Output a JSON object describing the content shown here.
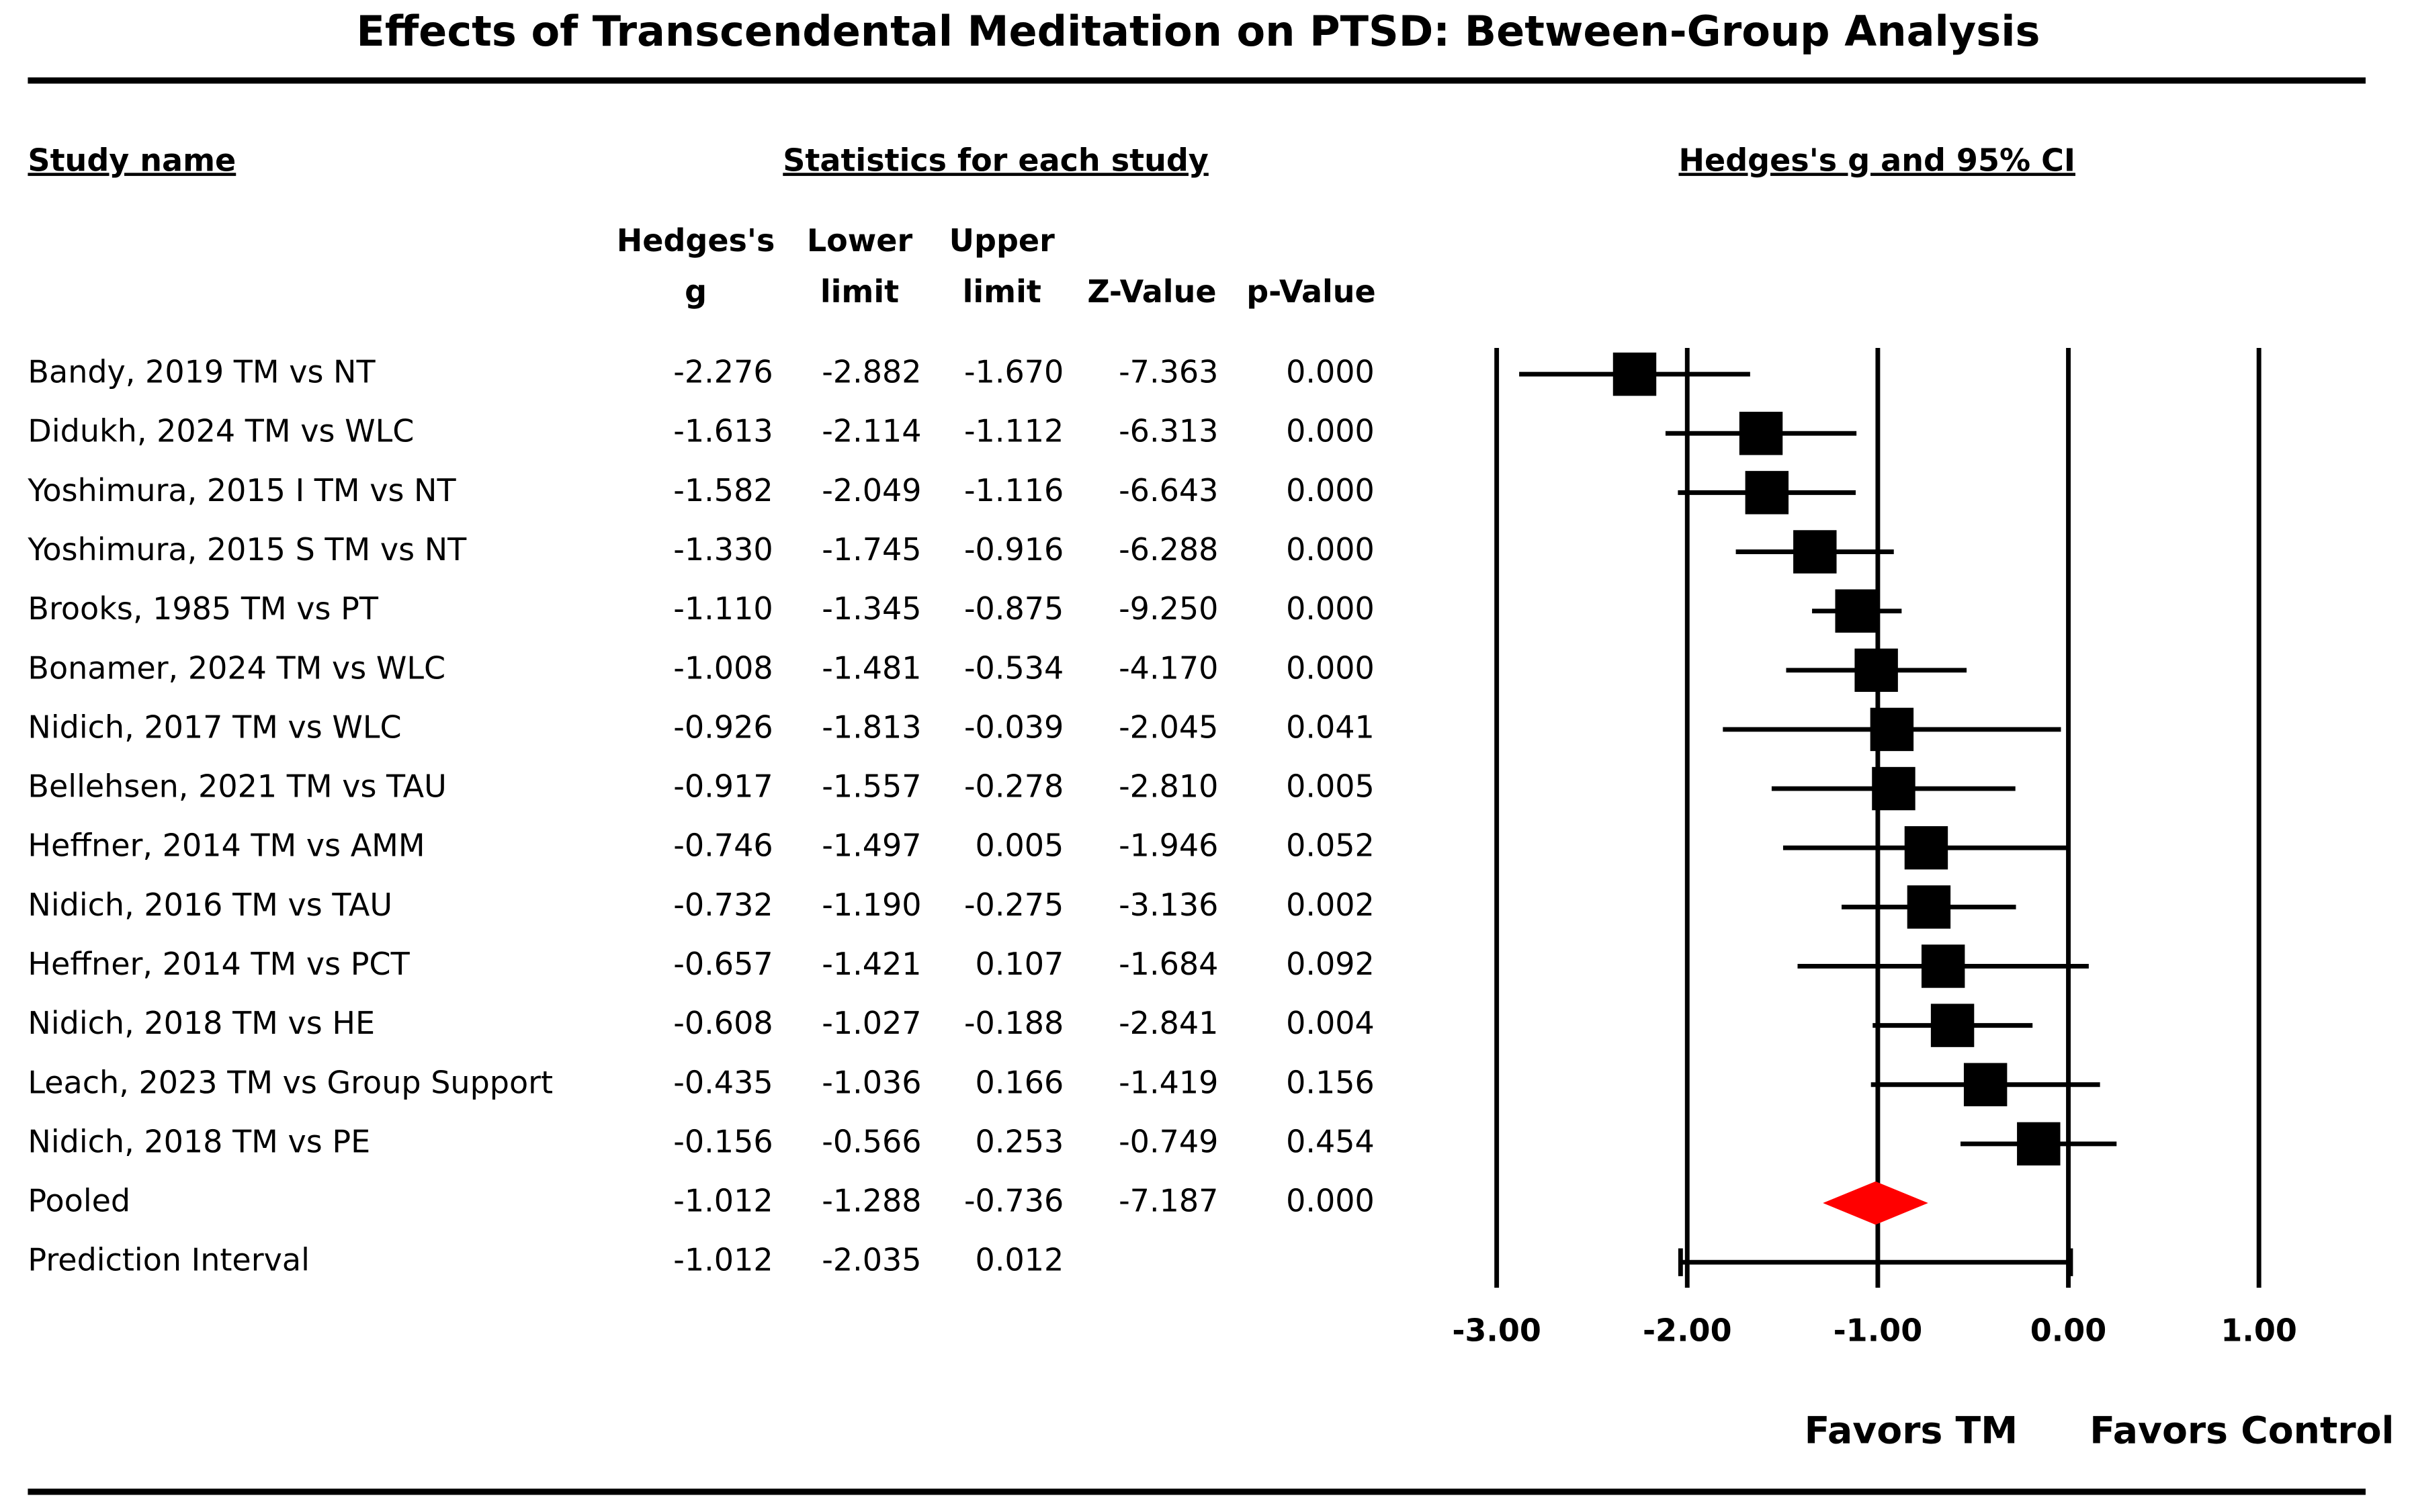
{
  "title": "Effects of Transcendental Meditation on PTSD: Between-Group Analysis",
  "headers": {
    "study": "Study name",
    "stats": "Statistics for each study",
    "plot": "Hedges's g and 95% CI",
    "columns": [
      [
        "Hedges's",
        "g"
      ],
      [
        "Lower",
        "limit"
      ],
      [
        "Upper",
        "limit"
      ],
      [
        "Z-Value"
      ],
      [
        "p-Value"
      ]
    ]
  },
  "chart_data": {
    "type": "forest",
    "rows": [
      {
        "study": "Bandy, 2019 TM vs NT",
        "g": -2.276,
        "lower": -2.882,
        "upper": {
          "value": -1.67,
          "label": "-1.670"
        },
        "z": -7.363,
        "p": {
          "value": 0,
          "label": "0.000"
        }
      },
      {
        "study": "Didukh, 2024 TM  vs WLC",
        "g": -1.613,
        "lower": -2.114,
        "upper": -1.112,
        "z": -6.313,
        "p": {
          "value": 0,
          "label": "0.000"
        }
      },
      {
        "study": "Yoshimura, 2015 I TM vs NT",
        "g": -1.582,
        "lower": -2.049,
        "upper": -1.116,
        "z": -6.643,
        "p": {
          "value": 0,
          "label": "0.000"
        }
      },
      {
        "study": "Yoshimura, 2015 S TM vs NT",
        "g": {
          "value": -1.33,
          "label": "-1.330"
        },
        "lower": -1.745,
        "upper": -0.916,
        "z": -6.288,
        "p": {
          "value": 0,
          "label": "0.000"
        }
      },
      {
        "study": "Brooks, 1985 TM vs PT",
        "g": {
          "value": -1.11,
          "label": "-1.110"
        },
        "lower": -1.345,
        "upper": -0.875,
        "z": {
          "value": -9.25,
          "label": "-9.250"
        },
        "p": {
          "value": 0,
          "label": "0.000"
        }
      },
      {
        "study": "Bonamer, 2024 TM  vs WLC",
        "g": -1.008,
        "lower": -1.481,
        "upper": -0.534,
        "z": {
          "value": -4.17,
          "label": "-4.170"
        },
        "p": {
          "value": 0,
          "label": "0.000"
        }
      },
      {
        "study": "Nidich, 2017 TM vs WLC",
        "g": -0.926,
        "lower": -1.813,
        "upper": -0.039,
        "z": -2.045,
        "p": 0.041
      },
      {
        "study": "Bellehsen, 2021 TM vs TAU",
        "g": -0.917,
        "lower": -1.557,
        "upper": -0.278,
        "z": {
          "value": -2.81,
          "label": "-2.810"
        },
        "p": 0.005
      },
      {
        "study": "Heffner, 2014 TM vs AMM",
        "g": -0.746,
        "lower": -1.497,
        "upper": 0.005,
        "z": -1.946,
        "p": 0.052
      },
      {
        "study": "Nidich, 2016 TM vs TAU",
        "g": -0.732,
        "lower": {
          "value": -1.19,
          "label": "-1.190"
        },
        "upper": -0.275,
        "z": -3.136,
        "p": 0.002
      },
      {
        "study": "Heffner, 2014 TM vs PCT",
        "g": -0.657,
        "lower": -1.421,
        "upper": 0.107,
        "z": -1.684,
        "p": 0.092
      },
      {
        "study": "Nidich, 2018 TM vs HE",
        "g": -0.608,
        "lower": -1.027,
        "upper": -0.188,
        "z": -2.841,
        "p": 0.004
      },
      {
        "study": "Leach, 2023 TM vs Group Support",
        "g": -0.435,
        "lower": -1.036,
        "upper": 0.166,
        "z": -1.419,
        "p": 0.156
      },
      {
        "study": "Nidich, 2018 TM vs PE",
        "g": -0.156,
        "lower": -0.566,
        "upper": 0.253,
        "z": -0.749,
        "p": 0.454
      }
    ],
    "pooled": {
      "study": "Pooled",
      "g": -1.012,
      "lower": -1.288,
      "upper": -0.736,
      "z": -7.187,
      "p": {
        "value": 0,
        "label": "0.000"
      },
      "color": "#ff0000"
    },
    "prediction": {
      "study": "Prediction Interval",
      "g": -1.012,
      "lower": -2.035,
      "upper": 0.012
    },
    "xlim": [
      -3,
      1
    ],
    "xticks": [
      {
        "value": -3,
        "label": "-3.00"
      },
      {
        "value": -2,
        "label": "-2.00"
      },
      {
        "value": -1,
        "label": "-1.00"
      },
      {
        "value": 0,
        "label": "0.00"
      },
      {
        "value": 1,
        "label": "1.00"
      }
    ],
    "grid": true,
    "color": "#000000",
    "favors_left": "Favors TM",
    "favors_right": "Favors Control"
  }
}
